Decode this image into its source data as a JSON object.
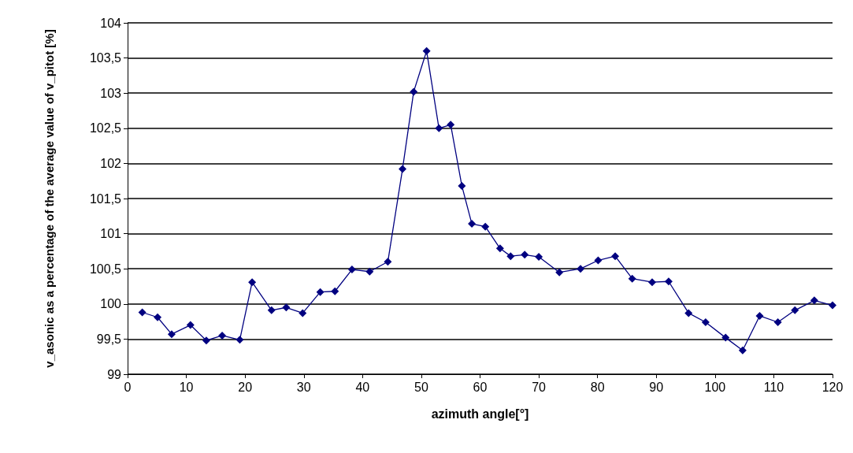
{
  "chart_data": {
    "type": "line",
    "xlabel": "azimuth angle[°]",
    "ylabel": "v_asonic as a percentage of the average value of v_pitot [%]",
    "marker": "diamond",
    "line_style": "solid",
    "grid": "y",
    "xlim": [
      0,
      120
    ],
    "xticks": [
      0,
      10,
      20,
      30,
      40,
      50,
      60,
      70,
      80,
      90,
      100,
      110,
      120
    ],
    "ylim": [
      99,
      104
    ],
    "yticks": [
      99,
      {
        "value": 99.5,
        "label": "99,5"
      },
      100,
      {
        "value": 100.5,
        "label": "100,5"
      },
      101,
      {
        "value": 101.5,
        "label": "101,5"
      },
      102,
      {
        "value": 102.5,
        "label": "102,5"
      },
      103,
      {
        "value": 103.5,
        "label": "103,5"
      },
      104
    ],
    "series": [
      {
        "color": "#000080",
        "x": [
          2.5,
          5.1,
          7.5,
          10.7,
          13.4,
          16.1,
          19.1,
          21.2,
          24.5,
          27.0,
          29.8,
          32.8,
          35.3,
          38.2,
          41.2,
          44.3,
          46.8,
          48.7,
          50.9,
          53.0,
          55.0,
          56.9,
          58.6,
          60.9,
          63.4,
          65.2,
          67.6,
          70.0,
          73.5,
          77.1,
          80.1,
          83.0,
          85.9,
          89.3,
          92.1,
          95.5,
          98.4,
          101.8,
          104.7,
          107.6,
          110.7,
          113.6,
          116.9,
          120
        ],
        "values": [
          99.88,
          99.81,
          99.57,
          99.7,
          99.48,
          99.55,
          99.49,
          100.31,
          99.91,
          99.95,
          99.87,
          100.17,
          100.18,
          100.49,
          100.46,
          100.6,
          101.92,
          103.02,
          103.6,
          102.5,
          102.55,
          101.68,
          101.14,
          101.1,
          100.79,
          100.68,
          100.7,
          100.67,
          100.45,
          100.5,
          100.62,
          100.68,
          100.36,
          100.31,
          100.32,
          99.87,
          99.74,
          99.52,
          99.34,
          99.83,
          99.74,
          99.91,
          100.05,
          99.98
        ]
      }
    ]
  }
}
